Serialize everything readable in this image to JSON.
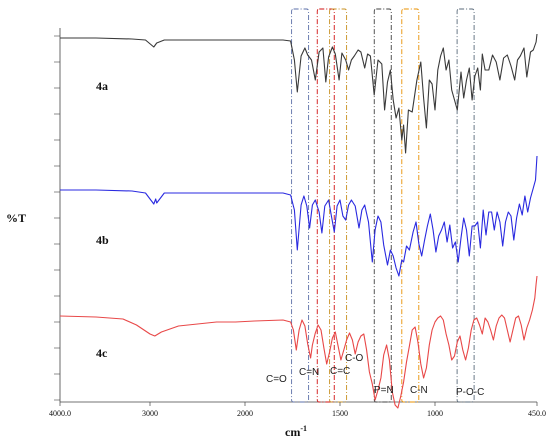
{
  "chart_data": {
    "type": "line",
    "xlabel": "cm",
    "xlabel_sup": "-1",
    "ylabel": "%T",
    "xlim": [
      4000,
      450
    ],
    "x_ticks": [
      {
        "value": 4000,
        "label": "4000.0"
      },
      {
        "value": 3000,
        "label": "3000"
      },
      {
        "value": 2000,
        "label": "2000"
      },
      {
        "value": 1500,
        "label": "1500"
      },
      {
        "value": 1000,
        "label": "1000"
      },
      {
        "value": 450,
        "label": "450.0"
      }
    ],
    "grid": false,
    "series": [
      {
        "name": "4a",
        "color": "#3a3a3a",
        "points": [
          [
            4000,
            38
          ],
          [
            3600,
            38
          ],
          [
            3200,
            39
          ],
          [
            3050,
            40
          ],
          [
            2960,
            47
          ],
          [
            2930,
            43
          ],
          [
            2850,
            40
          ],
          [
            2500,
            40
          ],
          [
            2000,
            40
          ],
          [
            1800,
            40
          ],
          [
            1760,
            41
          ],
          [
            1740,
            60
          ],
          [
            1725,
            92
          ],
          [
            1705,
            56
          ],
          [
            1685,
            48
          ],
          [
            1670,
            55
          ],
          [
            1650,
            60
          ],
          [
            1630,
            80
          ],
          [
            1610,
            52
          ],
          [
            1590,
            48
          ],
          [
            1575,
            82
          ],
          [
            1560,
            57
          ],
          [
            1540,
            47
          ],
          [
            1525,
            54
          ],
          [
            1505,
            80
          ],
          [
            1490,
            53
          ],
          [
            1470,
            60
          ],
          [
            1455,
            70
          ],
          [
            1440,
            60
          ],
          [
            1425,
            56
          ],
          [
            1405,
            50
          ],
          [
            1390,
            52
          ],
          [
            1370,
            68
          ],
          [
            1355,
            54
          ],
          [
            1340,
            56
          ],
          [
            1320,
            95
          ],
          [
            1300,
            60
          ],
          [
            1280,
            64
          ],
          [
            1265,
            110
          ],
          [
            1250,
            82
          ],
          [
            1235,
            70
          ],
          [
            1220,
            100
          ],
          [
            1205,
            118
          ],
          [
            1190,
            108
          ],
          [
            1175,
            140
          ],
          [
            1165,
            125
          ],
          [
            1155,
            153
          ],
          [
            1140,
            110
          ],
          [
            1120,
            112
          ],
          [
            1095,
            80
          ],
          [
            1075,
            62
          ],
          [
            1060,
            98
          ],
          [
            1045,
            128
          ],
          [
            1030,
            80
          ],
          [
            1015,
            84
          ],
          [
            1000,
            110
          ],
          [
            985,
            70
          ],
          [
            970,
            56
          ],
          [
            955,
            48
          ],
          [
            940,
            70
          ],
          [
            925,
            60
          ],
          [
            910,
            90
          ],
          [
            895,
            100
          ],
          [
            880,
            110
          ],
          [
            860,
            72
          ],
          [
            845,
            98
          ],
          [
            830,
            80
          ],
          [
            815,
            68
          ],
          [
            800,
            100
          ],
          [
            785,
            76
          ],
          [
            770,
            68
          ],
          [
            755,
            90
          ],
          [
            745,
            54
          ],
          [
            730,
            70
          ],
          [
            710,
            70
          ],
          [
            690,
            55
          ],
          [
            670,
            62
          ],
          [
            650,
            80
          ],
          [
            630,
            58
          ],
          [
            610,
            55
          ],
          [
            590,
            66
          ],
          [
            570,
            80
          ],
          [
            555,
            60
          ],
          [
            540,
            56
          ],
          [
            520,
            48
          ],
          [
            505,
            77
          ],
          [
            485,
            52
          ],
          [
            470,
            50
          ],
          [
            455,
            42
          ],
          [
            450,
            34
          ]
        ]
      },
      {
        "name": "4b",
        "color": "#2a2ae0",
        "points": [
          [
            4000,
            190
          ],
          [
            3600,
            190
          ],
          [
            3200,
            191
          ],
          [
            3050,
            193
          ],
          [
            2960,
            204
          ],
          [
            2940,
            199
          ],
          [
            2930,
            203
          ],
          [
            2850,
            193
          ],
          [
            2500,
            193
          ],
          [
            2000,
            193
          ],
          [
            1800,
            193
          ],
          [
            1760,
            195
          ],
          [
            1740,
            210
          ],
          [
            1725,
            250
          ],
          [
            1705,
            205
          ],
          [
            1690,
            196
          ],
          [
            1675,
            206
          ],
          [
            1660,
            228
          ],
          [
            1645,
            205
          ],
          [
            1630,
            200
          ],
          [
            1610,
            212
          ],
          [
            1595,
            233
          ],
          [
            1580,
            206
          ],
          [
            1560,
            200
          ],
          [
            1545,
            216
          ],
          [
            1530,
            232
          ],
          [
            1515,
            206
          ],
          [
            1500,
            200
          ],
          [
            1485,
            216
          ],
          [
            1470,
            220
          ],
          [
            1455,
            205
          ],
          [
            1440,
            200
          ],
          [
            1420,
            206
          ],
          [
            1400,
            228
          ],
          [
            1385,
            210
          ],
          [
            1370,
            205
          ],
          [
            1350,
            222
          ],
          [
            1330,
            262
          ],
          [
            1315,
            230
          ],
          [
            1300,
            216
          ],
          [
            1285,
            222
          ],
          [
            1270,
            245
          ],
          [
            1250,
            265
          ],
          [
            1235,
            250
          ],
          [
            1220,
            256
          ],
          [
            1205,
            268
          ],
          [
            1190,
            276
          ],
          [
            1175,
            260
          ],
          [
            1165,
            262
          ],
          [
            1150,
            246
          ],
          [
            1135,
            250
          ],
          [
            1115,
            232
          ],
          [
            1100,
            222
          ],
          [
            1085,
            244
          ],
          [
            1070,
            256
          ],
          [
            1055,
            240
          ],
          [
            1040,
            226
          ],
          [
            1025,
            214
          ],
          [
            1010,
            230
          ],
          [
            995,
            252
          ],
          [
            980,
            236
          ],
          [
            965,
            230
          ],
          [
            950,
            222
          ],
          [
            935,
            242
          ],
          [
            920,
            225
          ],
          [
            905,
            248
          ],
          [
            890,
            242
          ],
          [
            875,
            262
          ],
          [
            860,
            238
          ],
          [
            845,
            218
          ],
          [
            830,
            230
          ],
          [
            815,
            256
          ],
          [
            800,
            226
          ],
          [
            785,
            226
          ],
          [
            770,
            222
          ],
          [
            755,
            248
          ],
          [
            740,
            210
          ],
          [
            725,
            235
          ],
          [
            710,
            212
          ],
          [
            695,
            212
          ],
          [
            680,
            230
          ],
          [
            665,
            212
          ],
          [
            650,
            222
          ],
          [
            635,
            246
          ],
          [
            620,
            222
          ],
          [
            605,
            212
          ],
          [
            590,
            216
          ],
          [
            575,
            240
          ],
          [
            560,
            218
          ],
          [
            545,
            204
          ],
          [
            530,
            215
          ],
          [
            515,
            196
          ],
          [
            500,
            212
          ],
          [
            485,
            198
          ],
          [
            470,
            188
          ],
          [
            458,
            180
          ],
          [
            450,
            156
          ]
        ]
      },
      {
        "name": "4c",
        "color": "#e84848",
        "points": [
          [
            4000,
            316
          ],
          [
            3600,
            317
          ],
          [
            3300,
            319
          ],
          [
            3150,
            325
          ],
          [
            3000,
            334
          ],
          [
            2950,
            336
          ],
          [
            2880,
            332
          ],
          [
            2700,
            326
          ],
          [
            2500,
            324
          ],
          [
            2300,
            322
          ],
          [
            2100,
            322
          ],
          [
            1950,
            321
          ],
          [
            1800,
            320
          ],
          [
            1760,
            322
          ],
          [
            1745,
            330
          ],
          [
            1730,
            350
          ],
          [
            1715,
            330
          ],
          [
            1700,
            320
          ],
          [
            1685,
            326
          ],
          [
            1670,
            344
          ],
          [
            1655,
            358
          ],
          [
            1645,
            345
          ],
          [
            1630,
            333
          ],
          [
            1615,
            325
          ],
          [
            1600,
            330
          ],
          [
            1585,
            348
          ],
          [
            1570,
            364
          ],
          [
            1555,
            352
          ],
          [
            1540,
            338
          ],
          [
            1525,
            332
          ],
          [
            1510,
            346
          ],
          [
            1495,
            360
          ],
          [
            1480,
            350
          ],
          [
            1465,
            340
          ],
          [
            1450,
            333
          ],
          [
            1435,
            340
          ],
          [
            1420,
            354
          ],
          [
            1405,
            342
          ],
          [
            1390,
            336
          ],
          [
            1375,
            334
          ],
          [
            1360,
            350
          ],
          [
            1345,
            372
          ],
          [
            1330,
            384
          ],
          [
            1315,
            400
          ],
          [
            1300,
            390
          ],
          [
            1285,
            378
          ],
          [
            1270,
            355
          ],
          [
            1255,
            345
          ],
          [
            1240,
            360
          ],
          [
            1225,
            392
          ],
          [
            1210,
            405
          ],
          [
            1195,
            408
          ],
          [
            1180,
            396
          ],
          [
            1165,
            382
          ],
          [
            1150,
            362
          ],
          [
            1135,
            346
          ],
          [
            1120,
            330
          ],
          [
            1105,
            327
          ],
          [
            1090,
            342
          ],
          [
            1075,
            364
          ],
          [
            1060,
            378
          ],
          [
            1045,
            368
          ],
          [
            1030,
            345
          ],
          [
            1015,
            330
          ],
          [
            1000,
            322
          ],
          [
            985,
            318
          ],
          [
            970,
            316
          ],
          [
            955,
            320
          ],
          [
            940,
            334
          ],
          [
            925,
            345
          ],
          [
            910,
            360
          ],
          [
            895,
            356
          ],
          [
            880,
            342
          ],
          [
            865,
            336
          ],
          [
            850,
            350
          ],
          [
            835,
            360
          ],
          [
            820,
            348
          ],
          [
            805,
            330
          ],
          [
            790,
            320
          ],
          [
            775,
            318
          ],
          [
            760,
            325
          ],
          [
            745,
            334
          ],
          [
            730,
            318
          ],
          [
            715,
            322
          ],
          [
            700,
            330
          ],
          [
            685,
            340
          ],
          [
            670,
            326
          ],
          [
            655,
            318
          ],
          [
            640,
            315
          ],
          [
            625,
            318
          ],
          [
            610,
            330
          ],
          [
            595,
            342
          ],
          [
            580,
            330
          ],
          [
            565,
            318
          ],
          [
            550,
            316
          ],
          [
            535,
            325
          ],
          [
            520,
            340
          ],
          [
            505,
            328
          ],
          [
            490,
            320
          ],
          [
            475,
            310
          ],
          [
            462,
            298
          ],
          [
            455,
            284
          ],
          [
            450,
            276
          ]
        ]
      }
    ],
    "series_labels": [
      "4a",
      "4b",
      "4c"
    ],
    "bands": [
      {
        "center": 1710,
        "color": "#5b6fa8"
      },
      {
        "center": 1575,
        "color": "#d01010"
      },
      {
        "center": 1510,
        "color": "#c89020"
      },
      {
        "center": 1275,
        "color": "#404040"
      },
      {
        "center": 1130,
        "color": "#e89000"
      },
      {
        "center": 835,
        "color": "#5a6a7a"
      }
    ],
    "annotations": [
      {
        "text": "C=O"
      },
      {
        "text": "C=N"
      },
      {
        "text": "C=C"
      },
      {
        "text": "C-O"
      },
      {
        "text": "P=N"
      },
      {
        "text": "C-N"
      },
      {
        "text": "P-O-C"
      }
    ]
  }
}
